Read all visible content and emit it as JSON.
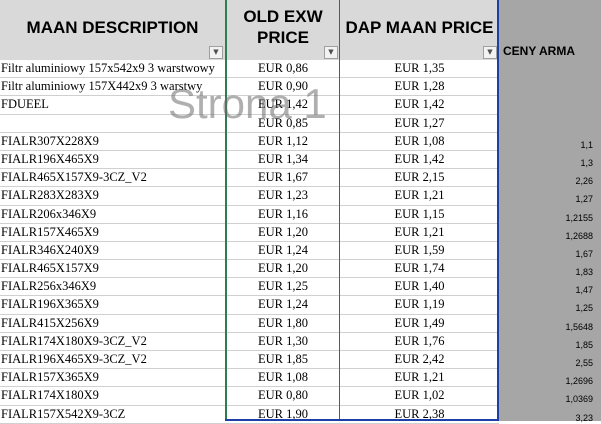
{
  "headers": {
    "description": "MAAN DESCRIPTION",
    "old_price_line1": "OLD EXW",
    "old_price_line2": "PRICE",
    "dap_price": "DAP MAAN PRICE",
    "ceny": "CENY ARMA"
  },
  "watermark": "Strona 1",
  "filter_icon": "filter-dropdown-icon",
  "rows": [
    {
      "desc": "Filtr aluminiowy 157x542x9 3 warstwowy",
      "old": "EUR 0,86",
      "dap": "EUR 1,35",
      "ceny": ""
    },
    {
      "desc": "Filtr aluminiowy 157X442x9 3 warstwy",
      "old": "EUR 0,90",
      "dap": "EUR 1,28",
      "ceny": ""
    },
    {
      "desc": "FDUEEL",
      "old": "EUR 1,42",
      "dap": "EUR 1,42",
      "ceny": ""
    },
    {
      "desc": "",
      "old": "EUR 0,85",
      "dap": "EUR 1,27",
      "ceny": ""
    },
    {
      "desc": "FIALR307X228X9",
      "old": "EUR 1,12",
      "dap": "EUR 1,08",
      "ceny": "1,1"
    },
    {
      "desc": "FIALR196X465X9",
      "old": "EUR 1,34",
      "dap": "EUR 1,42",
      "ceny": "1,3"
    },
    {
      "desc": "FIALR465X157X9-3CZ_V2",
      "old": "EUR 1,67",
      "dap": "EUR 2,15",
      "ceny": "2,26"
    },
    {
      "desc": "FIALR283X283X9",
      "old": "EUR 1,23",
      "dap": "EUR 1,21",
      "ceny": "1,27"
    },
    {
      "desc": "FIALR206x346X9",
      "old": "EUR 1,16",
      "dap": "EUR 1,15",
      "ceny": "1,2155"
    },
    {
      "desc": "FIALR157X465X9",
      "old": "EUR 1,20",
      "dap": "EUR 1,21",
      "ceny": "1,2688"
    },
    {
      "desc": "FIALR346X240X9",
      "old": "EUR 1,24",
      "dap": "EUR 1,59",
      "ceny": "1,67"
    },
    {
      "desc": "FIALR465X157X9",
      "old": "EUR 1,20",
      "dap": "EUR 1,74",
      "ceny": "1,83"
    },
    {
      "desc": "FIALR256x346X9",
      "old": "EUR 1,25",
      "dap": "EUR 1,40",
      "ceny": "1,47"
    },
    {
      "desc": "FIALR196X365X9",
      "old": "EUR 1,24",
      "dap": "EUR 1,19",
      "ceny": "1,25"
    },
    {
      "desc": "FIALR415X256X9",
      "old": "EUR 1,80",
      "dap": "EUR 1,49",
      "ceny": "1,5648"
    },
    {
      "desc": "FIALR174X180X9-3CZ_V2",
      "old": "EUR 1,30",
      "dap": "EUR 1,76",
      "ceny": "1,85"
    },
    {
      "desc": "FIALR196X465X9-3CZ_V2",
      "old": "EUR 1,85",
      "dap": "EUR 2,42",
      "ceny": "2,55"
    },
    {
      "desc": "FIALR157X365X9",
      "old": "EUR 1,08",
      "dap": "EUR 1,21",
      "ceny": "1,2696"
    },
    {
      "desc": "FIALR174X180X9",
      "old": "EUR 0,80",
      "dap": "EUR 1,02",
      "ceny": "1,0369"
    },
    {
      "desc": "FIALR157X542X9-3CZ",
      "old": "EUR 1,90",
      "dap": "EUR 2,38",
      "ceny": "3,23"
    }
  ]
}
